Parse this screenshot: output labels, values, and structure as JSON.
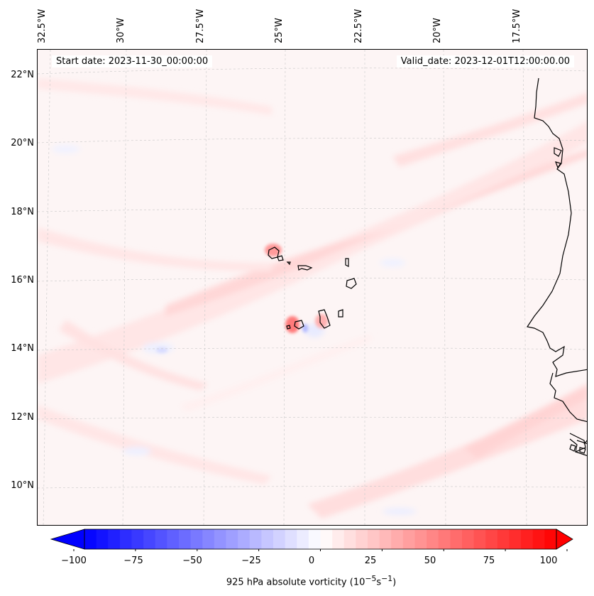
{
  "map": {
    "start_date": "Start date: 2023-11-30_00:00:00",
    "valid_date": "Valid_date: 2023-12-01T12:00:00.00",
    "lon_labels": [
      "32.5°W",
      "30°W",
      "27.5°W",
      "25°W",
      "22.5°W",
      "20°W",
      "17.5°W"
    ],
    "lat_labels": [
      "22°N",
      "20°N",
      "18°N",
      "16°N",
      "14°N",
      "12°N",
      "10°N"
    ],
    "colors": {
      "negative": "#0000ff",
      "zero": "#ffffff",
      "positive": "#ff0000",
      "coast": "#000000",
      "grid": "#cccccc"
    }
  },
  "colorbar": {
    "ticks": [
      "−100",
      "−75",
      "−50",
      "−25",
      "0",
      "25",
      "50",
      "75",
      "100"
    ],
    "range": [
      -100,
      100
    ],
    "label_prefix": "925 hPa absolute vorticity (10",
    "label_exp1": "−5",
    "label_mid": "s",
    "label_exp2": "−1",
    "label_suffix": ")"
  }
}
